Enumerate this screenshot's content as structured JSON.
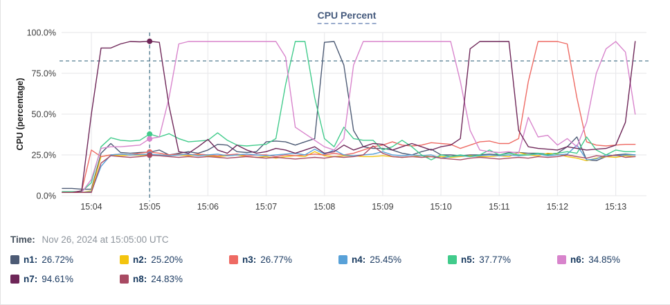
{
  "panel": {
    "title": "CPU Percent"
  },
  "time_readout": {
    "label": "Time:",
    "value": "Nov 26, 2024 at 15:05:00 UTC"
  },
  "chart_data": {
    "type": "line",
    "title": "CPU Percent",
    "xlabel": "",
    "ylabel": "CPU (percentage)",
    "ylim": [
      0,
      100
    ],
    "grid": true,
    "legend_position": "bottom",
    "ytick_values": [
      0,
      25,
      50,
      75,
      100
    ],
    "ytick_labels": [
      "0.0%",
      "25.0%",
      "50.0%",
      "75.0%",
      "100.0%"
    ],
    "x_start_time": "15:03:30",
    "x_step_seconds": 10,
    "x_point_count": 60,
    "xticks": [
      {
        "index": 3,
        "label": "15:04"
      },
      {
        "index": 9,
        "label": "15:05"
      },
      {
        "index": 15,
        "label": "15:06"
      },
      {
        "index": 21,
        "label": "15:07"
      },
      {
        "index": 27,
        "label": "15:08"
      },
      {
        "index": 33,
        "label": "15:09"
      },
      {
        "index": 39,
        "label": "15:10"
      },
      {
        "index": 45,
        "label": "15:11"
      },
      {
        "index": 51,
        "label": "15:12"
      },
      {
        "index": 57,
        "label": "15:13"
      }
    ],
    "threshold_line": {
      "value": 82.6,
      "style": "dashed",
      "color": "#3f6e85"
    },
    "crosshair": {
      "index": 9,
      "time": "15:05:00",
      "color": "#3f6e85"
    },
    "series": [
      {
        "name": "n1",
        "label": "n1:",
        "color": "#4d5b75",
        "crosshair_value": 26.72,
        "display_value": "26.72%",
        "values": [
          4.5,
          4.5,
          4,
          4,
          26,
          32,
          26.5,
          26,
          26.5,
          26.7,
          28,
          25,
          26,
          27,
          26,
          28,
          31.5,
          31,
          27,
          26.5,
          27,
          33,
          33.5,
          33,
          31,
          33,
          35,
          94,
          94.5,
          80,
          40,
          30,
          29,
          29,
          28,
          26,
          25,
          27,
          28.5,
          25,
          25,
          24.5,
          25,
          25,
          25.5,
          25,
          26.5,
          26.5,
          26,
          26,
          25.5,
          26,
          30,
          36,
          22,
          21.5,
          24,
          25,
          25.5,
          25
        ]
      },
      {
        "name": "n2",
        "label": "n2:",
        "color": "#f3c40f",
        "crosshair_value": 25.2,
        "display_value": "25.20%",
        "values": [
          2,
          2,
          2,
          3,
          24,
          25,
          24.5,
          25,
          24.8,
          25.2,
          25,
          24.5,
          25,
          24.5,
          25,
          24.5,
          24,
          24.5,
          25,
          24,
          23.5,
          24,
          23,
          24,
          24.5,
          24,
          27,
          24.5,
          24,
          24.5,
          24.5,
          24,
          24,
          24.5,
          24,
          23.5,
          24,
          24.5,
          24,
          24,
          23.5,
          24,
          24.5,
          24,
          24,
          24.5,
          24,
          26.5,
          25,
          24.5,
          26,
          25.5,
          24,
          23,
          21.5,
          23,
          24,
          23.5,
          24.5,
          24
        ]
      },
      {
        "name": "n3",
        "label": "n3:",
        "color": "#ee6a63",
        "crosshair_value": 26.77,
        "display_value": "26.77%",
        "values": [
          2,
          2,
          3,
          28,
          24,
          25,
          25.5,
          25,
          26,
          26.8,
          26,
          25,
          25.5,
          25,
          25.5,
          25,
          24.5,
          25,
          25.5,
          24.5,
          25,
          25,
          24,
          25,
          24.5,
          25,
          25.5,
          25,
          26,
          25,
          26,
          28,
          30,
          31,
          33,
          31,
          30.5,
          31,
          32.5,
          32,
          31.5,
          29,
          31,
          33,
          33.5,
          32,
          32,
          35,
          70,
          94.5,
          94.5,
          94.5,
          93,
          60,
          33,
          31,
          30.5,
          31,
          31.5,
          31.5
        ]
      },
      {
        "name": "n4",
        "label": "n4:",
        "color": "#58a1d8",
        "crosshair_value": 25.45,
        "display_value": "25.45%",
        "values": [
          2,
          2,
          2,
          2.5,
          18,
          25,
          25.5,
          25,
          25.2,
          25.4,
          25,
          24.5,
          25,
          25.5,
          24.5,
          25,
          25.5,
          24.5,
          25,
          25.5,
          25,
          24.5,
          25,
          25.5,
          26,
          25,
          28.5,
          25.5,
          28,
          25,
          24.5,
          25,
          25.5,
          27,
          25,
          24.5,
          25,
          24.5,
          25,
          23,
          24,
          24.5,
          24,
          24.5,
          25,
          24.5,
          25,
          24.5,
          25,
          25.5,
          24.5,
          25,
          25.5,
          31,
          22,
          22.5,
          25,
          24.5,
          25,
          25
        ]
      },
      {
        "name": "n5",
        "label": "n5:",
        "color": "#41cb8b",
        "crosshair_value": 37.77,
        "display_value": "37.77%",
        "values": [
          2.5,
          2.5,
          2.5,
          8,
          30,
          35.5,
          34,
          33.5,
          34,
          37.8,
          36,
          38,
          35,
          33,
          33.5,
          34,
          38.5,
          34,
          31,
          30.5,
          31,
          31.5,
          35,
          68,
          94.5,
          94.5,
          60,
          35,
          30,
          42,
          35,
          34,
          34,
          28,
          30,
          34,
          30,
          25,
          22,
          25,
          24,
          25,
          24,
          25,
          28,
          25,
          26,
          25,
          25,
          26,
          25,
          26,
          27,
          26,
          36,
          28,
          25,
          28,
          27,
          27
        ]
      },
      {
        "name": "n6",
        "label": "n6:",
        "color": "#d884cc",
        "crosshair_value": 34.85,
        "display_value": "34.85%",
        "values": [
          2,
          2,
          2,
          10,
          29,
          30,
          30,
          30.5,
          31,
          34.9,
          36,
          60,
          93,
          94.5,
          94.5,
          94.5,
          94.5,
          94.5,
          94.5,
          94.5,
          94.5,
          94.5,
          94.5,
          85,
          42,
          38,
          34,
          30,
          28,
          35,
          80,
          94.5,
          94.5,
          94.5,
          94.5,
          94.5,
          94.5,
          94.5,
          94.5,
          94.5,
          94.5,
          70,
          40,
          28,
          27,
          26.5,
          27,
          26,
          48,
          36,
          37,
          31,
          35,
          30,
          45,
          75,
          90,
          94.5,
          88,
          50
        ]
      },
      {
        "name": "n7",
        "label": "n7:",
        "color": "#6e2658",
        "crosshair_value": 94.61,
        "display_value": "94.61%",
        "values": [
          2,
          2,
          3,
          50,
          90.5,
          90.5,
          93,
          94.5,
          94.3,
          94.6,
          94,
          55,
          27,
          26,
          30,
          34.5,
          28,
          26,
          31,
          28,
          26,
          27,
          29,
          28,
          26,
          28,
          30,
          26,
          27,
          31,
          28,
          30,
          32,
          31.5,
          28,
          30,
          32,
          30,
          28,
          30,
          31,
          35,
          90,
          94.5,
          94.5,
          94.5,
          94.5,
          40,
          30,
          29,
          28.5,
          28,
          30,
          29,
          28,
          28.5,
          29,
          31,
          45,
          94.5
        ]
      },
      {
        "name": "n8",
        "label": "n8:",
        "color": "#a84a63",
        "crosshair_value": 24.83,
        "display_value": "24.83%",
        "values": [
          2,
          2,
          2,
          2,
          20,
          24.5,
          24,
          23.5,
          24,
          24.8,
          24.5,
          24,
          23.5,
          24,
          23.5,
          24,
          23.5,
          23,
          23.5,
          24,
          23.5,
          23,
          23.5,
          23,
          22.5,
          23,
          23.5,
          23,
          24,
          23.5,
          24,
          25,
          30.5,
          26,
          24,
          23.5,
          24,
          23.5,
          24,
          23,
          22.5,
          22,
          23,
          23.5,
          23,
          22.5,
          23,
          23.5,
          23,
          24,
          23.5,
          24,
          25,
          24,
          23,
          24.5,
          24,
          25,
          23.5,
          24
        ]
      }
    ]
  }
}
